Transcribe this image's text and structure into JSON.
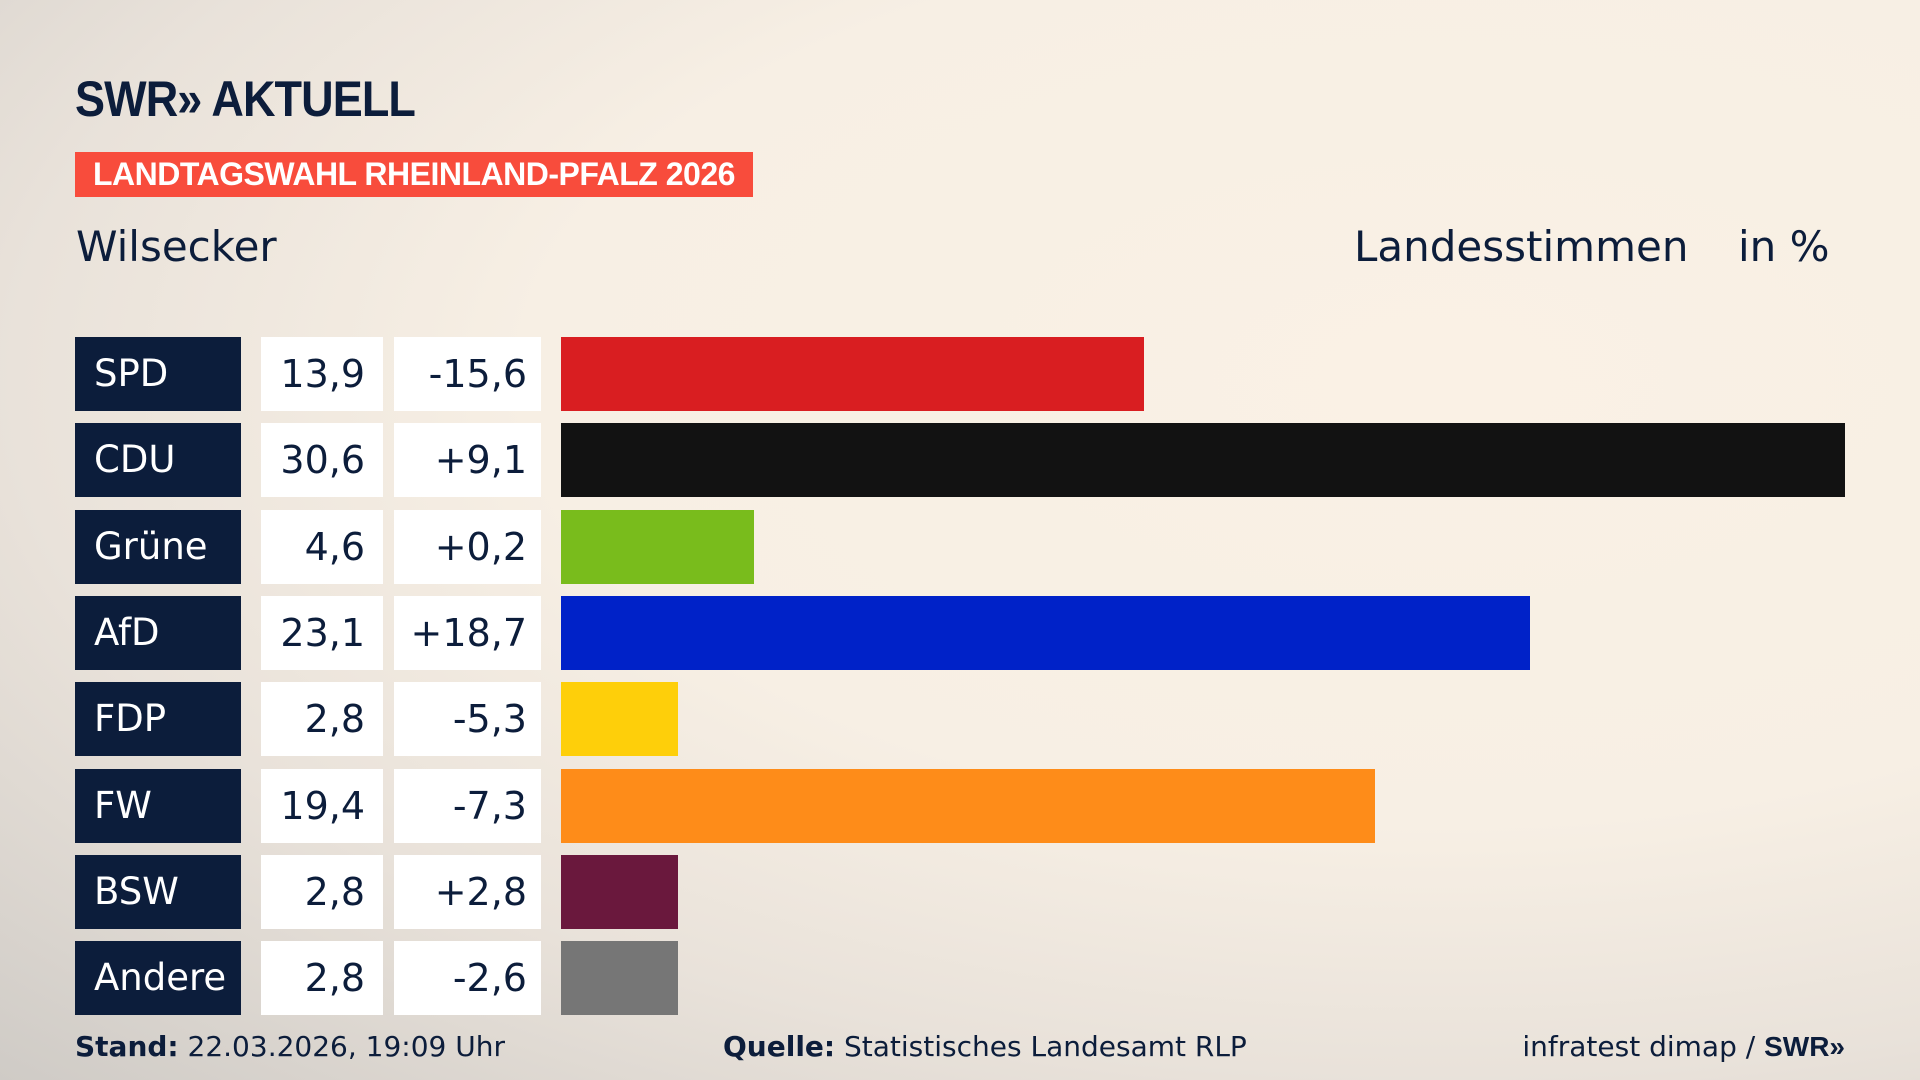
{
  "header": {
    "logo": "SWR» AKTUELL",
    "banner": "LANDTAGSWAHL RHEINLAND-PFALZ 2026",
    "place": "Wilsecker",
    "metric": "Landesstimmen",
    "unit": "in %"
  },
  "chart_data": {
    "type": "bar",
    "orientation": "horizontal",
    "categories": [
      "SPD",
      "CDU",
      "Grüne",
      "AfD",
      "FDP",
      "FW",
      "BSW",
      "Andere"
    ],
    "values": [
      13.9,
      30.6,
      4.6,
      23.1,
      2.8,
      19.4,
      2.8,
      2.8
    ],
    "values_label": [
      "13,9",
      "30,6",
      "4,6",
      "23,1",
      "2,8",
      "19,4",
      "2,8",
      "2,8"
    ],
    "diff_label": [
      "-15,6",
      "+9,1",
      "+0,2",
      "+18,7",
      "-5,3",
      "-7,3",
      "+2,8",
      "-2,6"
    ],
    "diff": [
      -15.6,
      9.1,
      0.2,
      18.7,
      -5.3,
      -7.3,
      2.8,
      -2.6
    ],
    "colors": [
      "#d91e21",
      "#121212",
      "#79bc1c",
      "#0022c8",
      "#fecf0a",
      "#fe8c19",
      "#6a183d",
      "#767676"
    ],
    "xlim": [
      0,
      30.6
    ]
  },
  "footer": {
    "stand_label": "Stand:",
    "stand": "22.03.2026, 19:09 Uhr",
    "source_label": "Quelle:",
    "source": "Statistisches Landesamt RLP",
    "credit": "infratest dimap / ",
    "credit_logo": "SWR»"
  }
}
